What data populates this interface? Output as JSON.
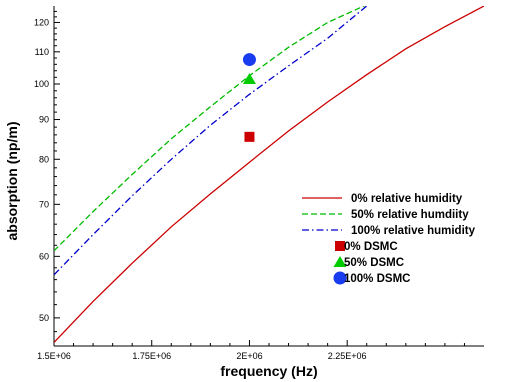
{
  "chart_data": {
    "type": "line",
    "title": "",
    "xlabel": "frequency (Hz)",
    "ylabel": "absorption (np/m)",
    "xlim": [
      1500000,
      2600000
    ],
    "ylim": [
      46,
      126
    ],
    "yscale": "log",
    "grid": false,
    "legend_position": "right",
    "x_ticks": [
      1500000,
      1750000,
      2000000,
      2250000
    ],
    "x_tick_labels": [
      "1.5E+06",
      "1.75E+06",
      "2E+06",
      "2.25E+06"
    ],
    "y_ticks": [
      50,
      60,
      70,
      80,
      90,
      100,
      110,
      120
    ],
    "y_tick_labels": [
      "50",
      "60",
      "70",
      "80",
      "90",
      "100",
      "110",
      "120"
    ],
    "series": [
      {
        "name": "0%  relative humidity",
        "kind": "line",
        "color": "#cc0000",
        "dash": "solid",
        "x": [
          1500000,
          1600000,
          1700000,
          1800000,
          1900000,
          2000000,
          2100000,
          2200000,
          2300000,
          2400000,
          2500000,
          2600000
        ],
        "y": [
          46.5,
          52.5,
          58.8,
          65.5,
          72.2,
          79.3,
          87.0,
          94.8,
          102.8,
          111.0,
          118.5,
          126.0
        ]
      },
      {
        "name": "50%  relative humdiity",
        "kind": "line",
        "color": "#00bb00",
        "dash": "dashed",
        "x": [
          1500000,
          1600000,
          1700000,
          1800000,
          1900000,
          2000000,
          2100000,
          2200000,
          2300000
        ],
        "y": [
          61.0,
          68.5,
          76.5,
          85.0,
          93.5,
          102.5,
          111.5,
          120.0,
          126.5
        ]
      },
      {
        "name": "100%  relative humidity",
        "kind": "line",
        "color": "#0000cc",
        "dash": "dashdot",
        "x": [
          1500000,
          1600000,
          1700000,
          1800000,
          1900000,
          2000000,
          2100000,
          2200000,
          2300000
        ],
        "y": [
          56.8,
          64.0,
          71.8,
          80.0,
          88.5,
          97.0,
          105.5,
          114.5,
          126.0
        ]
      },
      {
        "name": "0%  DSMC",
        "kind": "marker",
        "marker": "square",
        "color": "#cc0000",
        "x": [
          2000000
        ],
        "y": [
          85.5
        ]
      },
      {
        "name": "50%  DSMC",
        "kind": "marker",
        "marker": "triangle",
        "color": "#00cc00",
        "x": [
          2000000
        ],
        "y": [
          101.5
        ]
      },
      {
        "name": "100%  DSMC",
        "kind": "marker",
        "marker": "circle",
        "color": "#1a3cf0",
        "x": [
          2000000
        ],
        "y": [
          107.5
        ]
      }
    ]
  }
}
